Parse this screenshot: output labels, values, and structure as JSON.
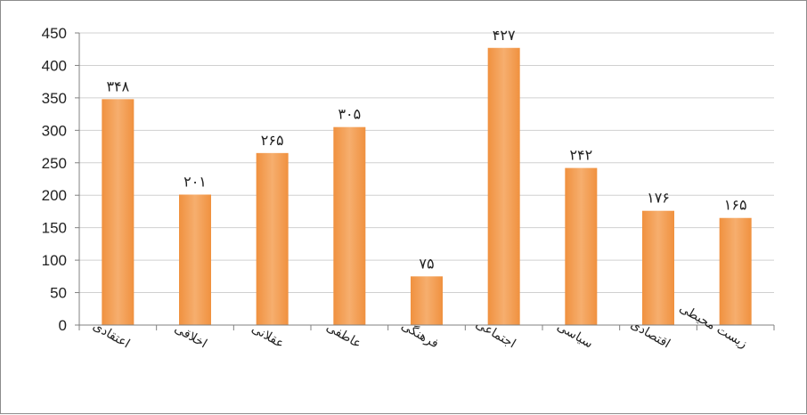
{
  "chart_data": {
    "type": "bar",
    "categories": [
      "اعتقادی",
      "اخلاقی",
      "عقلانی",
      "عاطفی",
      "فرهنگی",
      "اجتماعی",
      "سیاسی",
      "اقتصادی",
      "زیست محیطی"
    ],
    "values": [
      348,
      201,
      265,
      305,
      75,
      427,
      242,
      176,
      165
    ],
    "data_labels": [
      "۳۴۸",
      "۲۰۱",
      "۲۶۵",
      "۳۰۵",
      "۷۵",
      "۴۲۷",
      "۲۴۲",
      "۱۷۶",
      "۱۶۵"
    ],
    "y_ticks": [
      "0",
      "50",
      "100",
      "150",
      "200",
      "250",
      "300",
      "350",
      "400",
      "450"
    ],
    "ylim": [
      0,
      450
    ],
    "grid": true,
    "legend": "none",
    "colors": {
      "bar": "#F5A15A",
      "bar_dark": "#E8843A",
      "grid": "#d0d0d0",
      "axis": "#808080"
    }
  }
}
